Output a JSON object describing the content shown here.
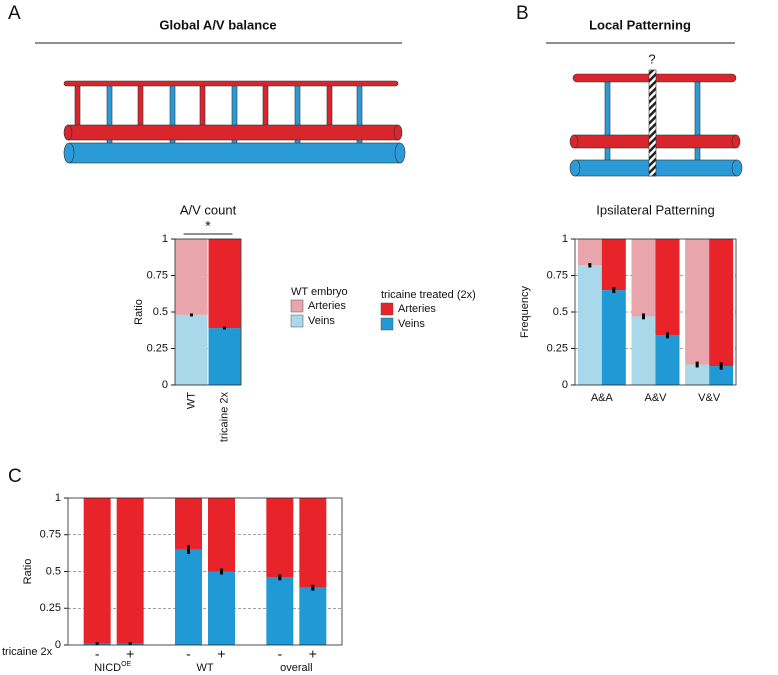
{
  "panels": [
    {
      "label": "A",
      "title": "Global A/V balance"
    },
    {
      "label": "B",
      "title": "Local Patterning",
      "annotation": "?"
    },
    {
      "label": "C"
    }
  ],
  "chart_data": [
    {
      "type": "stacked-bar",
      "title": "A/V count",
      "ylabel": "Ratio",
      "annotation": "*",
      "categories": [
        "WT",
        "tricaine 2x"
      ],
      "series": [
        {
          "veins": [
            0.48,
            0.39
          ],
          "errors": [
            0.01,
            0.01
          ],
          "arteries": [
            0.52,
            0.61
          ],
          "colors": {
            "veins": [
              "#a8d8ea",
              "#2199d5"
            ],
            "arteries": [
              "#e8a5ab",
              "#e8242a"
            ]
          }
        }
      ],
      "ylim": [
        0,
        1
      ],
      "yticks": [
        0,
        0.25,
        0.5,
        0.75,
        1
      ],
      "grid": true,
      "legend": [
        {
          "title": "WT embryo",
          "entries": [
            "Arteries",
            "Veins"
          ],
          "colors": [
            "#e8a5ab",
            "#a8d8ea"
          ]
        },
        {
          "title": "tricaine treated (2x)",
          "entries": [
            "Arteries",
            "Veins"
          ],
          "colors": [
            "#e8242a",
            "#2199d5"
          ]
        }
      ]
    },
    {
      "type": "stacked-bar",
      "title": "Ipsilateral  Patterning",
      "ylabel": "Frequency",
      "categories": [
        "A&A",
        "A&V",
        "V&V"
      ],
      "series": [
        {
          "veins": [
            0.82,
            0.47,
            0.14
          ],
          "errors": [
            0.015,
            0.02,
            0.02
          ],
          "arteries": [
            0.18,
            0.53,
            0.86
          ],
          "colors": {
            "veins": "#a8d8ea",
            "arteries": "#e8a5ab"
          }
        },
        {
          "veins": [
            0.65,
            0.34,
            0.13
          ],
          "errors": [
            0.02,
            0.02,
            0.025
          ],
          "arteries": [
            0.35,
            0.66,
            0.87
          ],
          "colors": {
            "veins": "#2199d5",
            "arteries": "#e8242a"
          }
        }
      ],
      "ylim": [
        0,
        1
      ],
      "yticks": [
        0,
        0.25,
        0.5,
        0.75,
        1
      ],
      "grid": true
    },
    {
      "type": "stacked-bar",
      "ylabel": "Ratio",
      "row_label": "tricaine 2x",
      "categories": [
        "NICD",
        "WT",
        "overall"
      ],
      "category_sup": [
        "OE",
        null,
        null
      ],
      "series": [
        {
          "label": "-",
          "veins": [
            0.01,
            0.65,
            0.46
          ],
          "errors": [
            0.01,
            0.03,
            0.02
          ],
          "arteries": [
            0.99,
            0.35,
            0.54
          ],
          "colors": {
            "veins": "#2199d5",
            "arteries": "#e8242a"
          }
        },
        {
          "label": "+",
          "veins": [
            0.01,
            0.5,
            0.39
          ],
          "errors": [
            0.01,
            0.02,
            0.02
          ],
          "arteries": [
            0.99,
            0.5,
            0.61
          ],
          "colors": {
            "veins": "#2199d5",
            "arteries": "#e8242a"
          }
        }
      ],
      "ylim": [
        0,
        1
      ],
      "yticks": [
        0,
        0.25,
        0.5,
        0.75,
        1
      ],
      "grid": true
    }
  ]
}
